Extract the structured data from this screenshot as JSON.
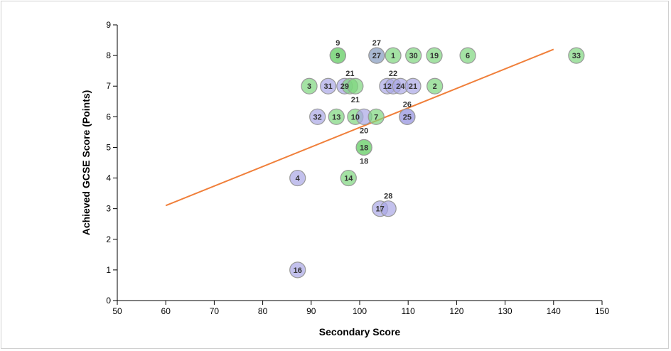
{
  "chart_data": {
    "type": "scatter",
    "xlabel": "Secondary Score",
    "ylabel": "Achieved GCSE Score (Points)",
    "xlim": [
      50,
      150
    ],
    "ylim": [
      0,
      9
    ],
    "xticks": [
      50,
      60,
      70,
      80,
      90,
      100,
      110,
      120,
      130,
      140,
      150
    ],
    "yticks": [
      0,
      1,
      2,
      3,
      4,
      5,
      6,
      7,
      8,
      9
    ],
    "grid": false,
    "colors": {
      "green": "#7ed67e",
      "blue": "#a9a6e6",
      "trend": "#f07f3a"
    },
    "points": [
      {
        "label": "9",
        "x": 95.5,
        "y": 8,
        "group": "green"
      },
      {
        "label": "9",
        "x": 95.5,
        "y": 8,
        "group": "green"
      },
      {
        "label": "27",
        "x": 103.5,
        "y": 8,
        "group": "green"
      },
      {
        "label": "27",
        "x": 103.5,
        "y": 8,
        "group": "blue"
      },
      {
        "label": "1",
        "x": 106.9,
        "y": 8,
        "group": "green"
      },
      {
        "label": "30",
        "x": 111.1,
        "y": 8,
        "group": "green"
      },
      {
        "label": "19",
        "x": 115.4,
        "y": 8,
        "group": "green"
      },
      {
        "label": "6",
        "x": 122.3,
        "y": 8,
        "group": "green"
      },
      {
        "label": "33",
        "x": 144.7,
        "y": 8,
        "group": "green"
      },
      {
        "label": "3",
        "x": 89.6,
        "y": 7,
        "group": "green"
      },
      {
        "label": "31",
        "x": 93.5,
        "y": 7,
        "group": "blue"
      },
      {
        "label": "29",
        "x": 96.9,
        "y": 7,
        "group": "blue"
      },
      {
        "label": "21",
        "x": 98.0,
        "y": 7,
        "group": "green"
      },
      {
        "label": "21",
        "x": 99.1,
        "y": 7,
        "group": "green"
      },
      {
        "label": "12",
        "x": 105.7,
        "y": 7,
        "group": "blue"
      },
      {
        "label": "22",
        "x": 106.9,
        "y": 7,
        "group": "blue"
      },
      {
        "label": "24",
        "x": 108.4,
        "y": 7,
        "group": "blue"
      },
      {
        "label": "21",
        "x": 111.0,
        "y": 7,
        "group": "blue"
      },
      {
        "label": "2",
        "x": 115.5,
        "y": 7,
        "group": "green"
      },
      {
        "label": "32",
        "x": 91.3,
        "y": 6,
        "group": "blue"
      },
      {
        "label": "13",
        "x": 95.2,
        "y": 6,
        "group": "green"
      },
      {
        "label": "10",
        "x": 99.1,
        "y": 6,
        "group": "green"
      },
      {
        "label": "20",
        "x": 100.9,
        "y": 6,
        "group": "blue"
      },
      {
        "label": "7",
        "x": 103.4,
        "y": 6,
        "group": "green"
      },
      {
        "label": "25",
        "x": 109.8,
        "y": 6,
        "group": "blue"
      },
      {
        "label": "26",
        "x": 109.8,
        "y": 6,
        "group": "blue"
      },
      {
        "label": "18",
        "x": 100.9,
        "y": 5,
        "group": "green"
      },
      {
        "label": "18",
        "x": 100.9,
        "y": 5,
        "group": "green"
      },
      {
        "label": "4",
        "x": 87.2,
        "y": 4,
        "group": "blue"
      },
      {
        "label": "14",
        "x": 97.7,
        "y": 4,
        "group": "green"
      },
      {
        "label": "17",
        "x": 104.2,
        "y": 3,
        "group": "blue"
      },
      {
        "label": "28",
        "x": 105.9,
        "y": 3,
        "group": "blue"
      },
      {
        "label": "16",
        "x": 87.2,
        "y": 1,
        "group": "blue"
      }
    ],
    "trendline": {
      "x": [
        60,
        140
      ],
      "y": [
        3.1,
        8.2
      ]
    }
  }
}
